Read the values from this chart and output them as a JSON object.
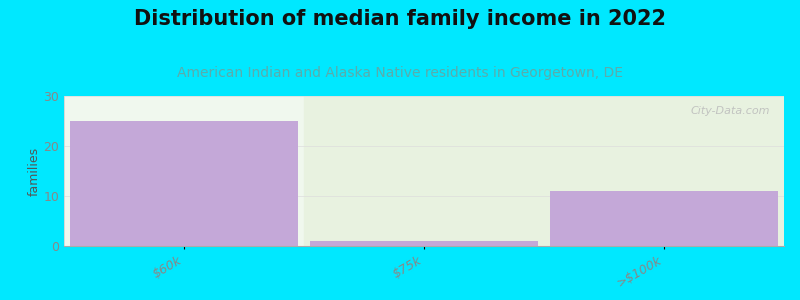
{
  "title": "Distribution of median family income in 2022",
  "subtitle": "American Indian and Alaska Native residents in Georgetown, DE",
  "categories": [
    "$60k",
    "$75k",
    ">$100k"
  ],
  "values": [
    25,
    1,
    11
  ],
  "bar_color": "#c4a8d8",
  "highlight_bg_color": "#e8f2e0",
  "plot_bg_color": "#f0f8ee",
  "figure_bg_color": "#00e8ff",
  "ylabel": "families",
  "ylim": [
    0,
    30
  ],
  "yticks": [
    0,
    10,
    20,
    30
  ],
  "title_fontsize": 15,
  "subtitle_fontsize": 10,
  "subtitle_color": "#5aacac",
  "ylabel_color": "#555555",
  "tick_label_color": "#888888",
  "watermark": "City-Data.com",
  "bar_width": 0.95,
  "grid_color": "#dddddd"
}
